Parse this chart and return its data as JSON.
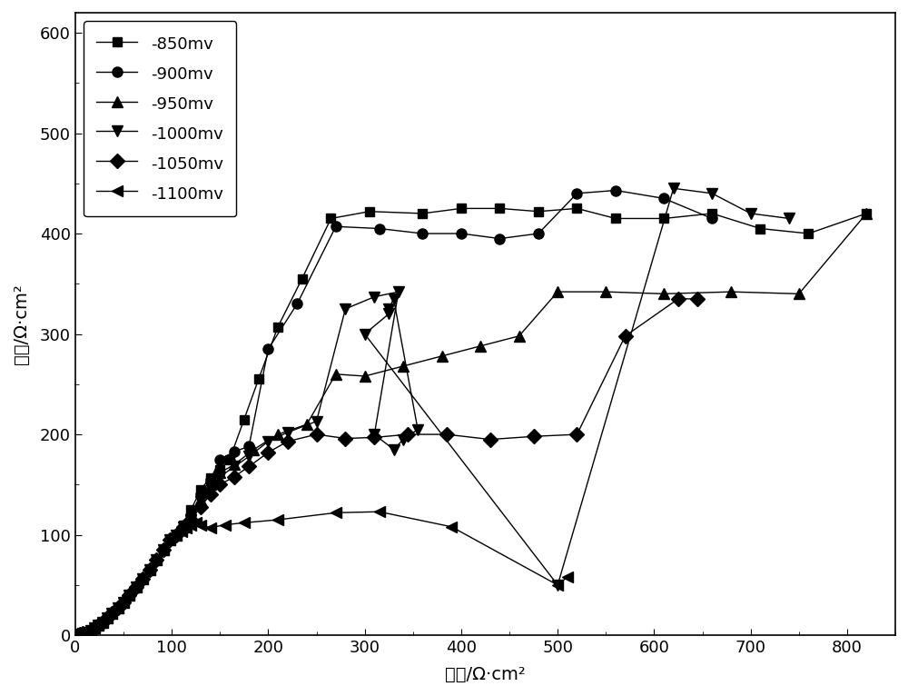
{
  "title": "",
  "xlabel": "实部/Ω·cm²",
  "ylabel": "虚部/Ω·cm²",
  "xlim": [
    0,
    850
  ],
  "ylim": [
    0,
    620
  ],
  "xticks": [
    0,
    100,
    200,
    300,
    400,
    500,
    600,
    700,
    800
  ],
  "yticks": [
    0,
    100,
    200,
    300,
    400,
    500,
    600
  ],
  "background_color": "#ffffff",
  "series": [
    {
      "label": "-850mv",
      "marker": "s",
      "color": "#000000",
      "x": [
        5,
        8,
        12,
        16,
        20,
        24,
        28,
        33,
        38,
        44,
        50,
        56,
        63,
        70,
        77,
        84,
        91,
        98,
        105,
        112,
        120,
        130,
        140,
        150,
        160,
        175,
        190,
        210,
        235,
        265,
        305,
        360,
        400,
        440,
        480,
        520,
        560,
        610,
        660,
        710,
        760,
        820
      ],
      "y": [
        1,
        2,
        3,
        5,
        7,
        10,
        13,
        17,
        22,
        27,
        33,
        40,
        48,
        56,
        65,
        75,
        85,
        95,
        100,
        110,
        125,
        145,
        157,
        165,
        175,
        215,
        255,
        307,
        355,
        415,
        422,
        420,
        425,
        425,
        422,
        425,
        415,
        415,
        420,
        405,
        400,
        420
      ]
    },
    {
      "label": "-900mv",
      "marker": "o",
      "color": "#000000",
      "x": [
        5,
        8,
        12,
        16,
        20,
        24,
        28,
        33,
        38,
        44,
        50,
        56,
        63,
        70,
        77,
        84,
        91,
        98,
        105,
        112,
        120,
        130,
        140,
        150,
        165,
        180,
        200,
        230,
        270,
        315,
        360,
        400,
        440,
        480,
        520,
        560,
        610,
        660
      ],
      "y": [
        1,
        2,
        3,
        5,
        7,
        10,
        13,
        17,
        22,
        27,
        33,
        40,
        48,
        56,
        65,
        75,
        85,
        95,
        100,
        108,
        120,
        140,
        155,
        175,
        183,
        188,
        285,
        330,
        407,
        405,
        400,
        400,
        395,
        400,
        440,
        443,
        435,
        415
      ]
    },
    {
      "label": "-950mv",
      "marker": "^",
      "color": "#000000",
      "x": [
        5,
        8,
        12,
        16,
        20,
        24,
        28,
        33,
        38,
        44,
        50,
        56,
        63,
        70,
        77,
        84,
        91,
        98,
        105,
        112,
        120,
        130,
        140,
        150,
        165,
        185,
        210,
        240,
        270,
        300,
        340,
        380,
        420,
        460,
        500,
        550,
        610,
        680,
        750,
        820
      ],
      "y": [
        1,
        2,
        3,
        5,
        7,
        10,
        13,
        17,
        22,
        27,
        33,
        40,
        48,
        56,
        65,
        75,
        85,
        95,
        100,
        108,
        118,
        135,
        150,
        162,
        170,
        185,
        200,
        210,
        260,
        258,
        268,
        278,
        288,
        298,
        342,
        342,
        340,
        342,
        340,
        420
      ]
    },
    {
      "label": "-1000mv",
      "marker": "v",
      "color": "#000000",
      "x": [
        5,
        8,
        12,
        16,
        20,
        24,
        28,
        33,
        38,
        44,
        50,
        56,
        63,
        70,
        77,
        84,
        91,
        98,
        105,
        112,
        120,
        130,
        140,
        150,
        165,
        180,
        200,
        220,
        250,
        280,
        310,
        335,
        310,
        330,
        340,
        355,
        330,
        325,
        325,
        300,
        500,
        620,
        660,
        700,
        740
      ],
      "y": [
        1,
        2,
        3,
        5,
        7,
        10,
        13,
        17,
        22,
        27,
        33,
        40,
        48,
        56,
        65,
        75,
        85,
        95,
        100,
        108,
        115,
        133,
        148,
        158,
        168,
        178,
        193,
        202,
        213,
        325,
        337,
        342,
        200,
        185,
        195,
        205,
        335,
        325,
        320,
        300,
        50,
        445,
        440,
        420,
        415
      ]
    },
    {
      "label": "-1050mv",
      "marker": "D",
      "color": "#000000",
      "x": [
        5,
        8,
        12,
        16,
        20,
        24,
        28,
        33,
        38,
        44,
        50,
        56,
        63,
        70,
        77,
        84,
        91,
        98,
        105,
        112,
        120,
        130,
        140,
        150,
        165,
        180,
        200,
        220,
        250,
        280,
        310,
        345,
        385,
        430,
        475,
        520,
        570,
        625,
        645
      ],
      "y": [
        1,
        2,
        3,
        5,
        7,
        10,
        13,
        17,
        22,
        27,
        33,
        40,
        48,
        56,
        65,
        75,
        85,
        95,
        100,
        108,
        115,
        128,
        140,
        150,
        158,
        168,
        182,
        193,
        200,
        196,
        197,
        200,
        200,
        195,
        198,
        200,
        298,
        335,
        335
      ]
    },
    {
      "label": "-1100mv",
      "marker": "<",
      "color": "#000000",
      "x": [
        5,
        8,
        12,
        16,
        20,
        24,
        28,
        33,
        38,
        44,
        50,
        56,
        63,
        70,
        77,
        84,
        91,
        98,
        105,
        110,
        115,
        120,
        125,
        130,
        140,
        155,
        175,
        210,
        270,
        315,
        390,
        500,
        510
      ],
      "y": [
        1,
        2,
        3,
        5,
        7,
        10,
        13,
        17,
        22,
        27,
        33,
        40,
        48,
        56,
        65,
        75,
        85,
        95,
        100,
        103,
        107,
        110,
        112,
        110,
        107,
        110,
        112,
        115,
        122,
        123,
        108,
        50,
        58
      ]
    }
  ]
}
